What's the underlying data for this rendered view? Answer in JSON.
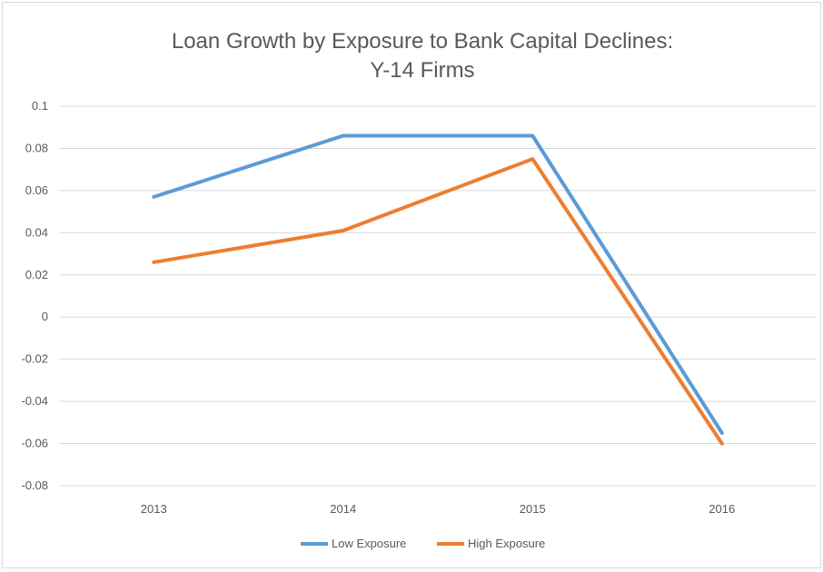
{
  "chart_data": {
    "type": "line",
    "title": [
      "Loan Growth by Exposure to Bank Capital Declines:",
      "Y-14 Firms"
    ],
    "xlabel": "",
    "ylabel": "",
    "categories": [
      "2013",
      "2014",
      "2015",
      "2016"
    ],
    "ylim": [
      -0.08,
      0.1
    ],
    "yticks": [
      0.1,
      0.08,
      0.06,
      0.04,
      0.02,
      0,
      -0.02,
      -0.04,
      -0.06,
      -0.08
    ],
    "ytick_labels": [
      "0.1",
      "0.08",
      "0.06",
      "0.04",
      "0.02",
      "0",
      "-0.02",
      "-0.04",
      "-0.06",
      "-0.08"
    ],
    "grid": true,
    "legend_position": "bottom",
    "series": [
      {
        "name": "Low Exposure",
        "color": "#5b9bd5",
        "values": [
          0.057,
          0.086,
          0.086,
          -0.055
        ]
      },
      {
        "name": "High Exposure",
        "color": "#ed7d31",
        "values": [
          0.026,
          0.041,
          0.075,
          -0.06
        ]
      }
    ]
  }
}
